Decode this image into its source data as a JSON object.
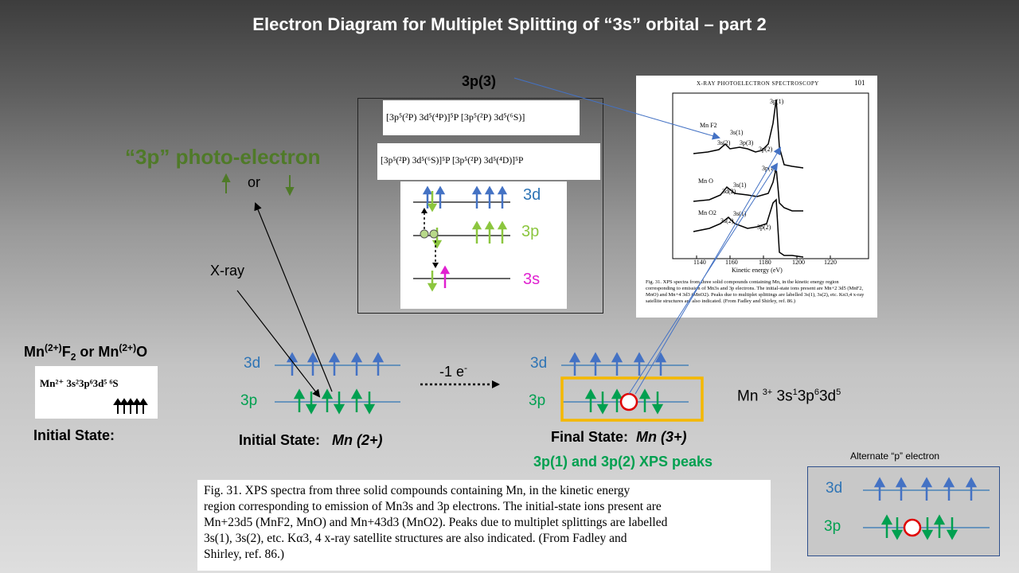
{
  "title": "Electron Diagram for Multiplet Splitting of “3s” orbital – part 2",
  "photoelectron": {
    "label": "“3p” photo-electron",
    "or": "or"
  },
  "xray_label": "X-ray",
  "label_3p3": "3p(3)",
  "left_compound": {
    "formula_a": "Mn",
    "ox_a": "(2+)",
    "f": "F",
    "f_sub": "2",
    "or": " or ",
    "formula_b": "Mn",
    "ox_b": "(2+)",
    "o": "O",
    "config_img": "Mn²⁺ 3s²3p⁶3d⁵ ⁶S",
    "state_label": "Initial State:"
  },
  "initial": {
    "label_3d": "3d",
    "label_3p": "3p",
    "state_label": "Initial State:",
    "state_value": "Mn (2+)"
  },
  "transition": {
    "label": "-1 e",
    "sup": "-"
  },
  "final": {
    "label_3d": "3d",
    "label_3p": "3p",
    "state_label": "Final State:",
    "state_value": "Mn (3+)",
    "peaks_label": "3p(1) and 3p(2) XPS peaks"
  },
  "mn3_config": {
    "mn": "Mn",
    "charge": "3+",
    "s": "3s",
    "s_n": "1",
    "p": "3p",
    "p_n": "6",
    "d": "3d",
    "d_n": "5"
  },
  "inset": {
    "term1": "[3p⁵(²P) 3d⁵(⁴P)]⁵P [3p⁵(²P) 3d⁵(⁶S)]",
    "term2": "[3p⁵(²P) 3d⁵(⁶S)]⁵P [3p⁵(²P) 3d⁵(⁴D)]⁵P",
    "lvl_3d": "3d",
    "lvl_3p": "3p",
    "lvl_3s": "3s"
  },
  "xps_figure": {
    "header_title": "X-RAY PHOTOELECTRON SPECTROSCOPY",
    "page": "101",
    "peak_labels": [
      "3p(1)",
      "3s(1)",
      "3s(2)",
      "3p(3)",
      "3p(2)",
      "3p(1)",
      "3s(1)",
      "3d(2)",
      "3s(1)",
      "3s(2)",
      "3p(2)"
    ],
    "compounds": [
      "Mn F2",
      "Mn O",
      "Mn O2"
    ],
    "x_ticks": [
      "1140",
      "1160",
      "1180",
      "1200",
      "1220"
    ],
    "x_label": "Kinetic energy (eV)",
    "caption": "Fig. 31. XPS spectra from three solid compounds containing Mn, in the kinetic energy region corresponding to emission of Mn3s and 3p electrons. The initial-state ions present are Mn+2 3d5 (MnF2, MnO) and Mn+4 3d3 (MnO2). Peaks due to multiplet splittings are labelled 3s(1), 3s(2), etc. Kα3,4 x-ray satellite structures are also indicated. (From Fadley and Shirley, ref. 86.)"
  },
  "caption": {
    "line1": "Fig. 31. XPS spectra from three solid compounds containing Mn, in the kinetic energy",
    "line2": "region corresponding to emission of Mn3s and 3p electrons. The initial-state ions present are",
    "line3": "Mn+23d5 (MnF2, MnO) and Mn+43d3 (MnO2). Peaks due to multiplet splittings are labelled",
    "line4": "3s(1), 3s(2), etc. Kα3, 4 x-ray satellite structures are also indicated. (From Fadley and",
    "line5": "Shirley, ref. 86.)"
  },
  "alternate": {
    "title": "Alternate “p” electron",
    "label_3d": "3d",
    "label_3p": "3p"
  },
  "colors": {
    "blue_arrow": "#4472c4",
    "green_arrow": "#00a050",
    "hole": "#e00000",
    "box_orange": "#f5b800",
    "inset_magenta": "#e020d0",
    "inset_green": "#8cc63f"
  }
}
